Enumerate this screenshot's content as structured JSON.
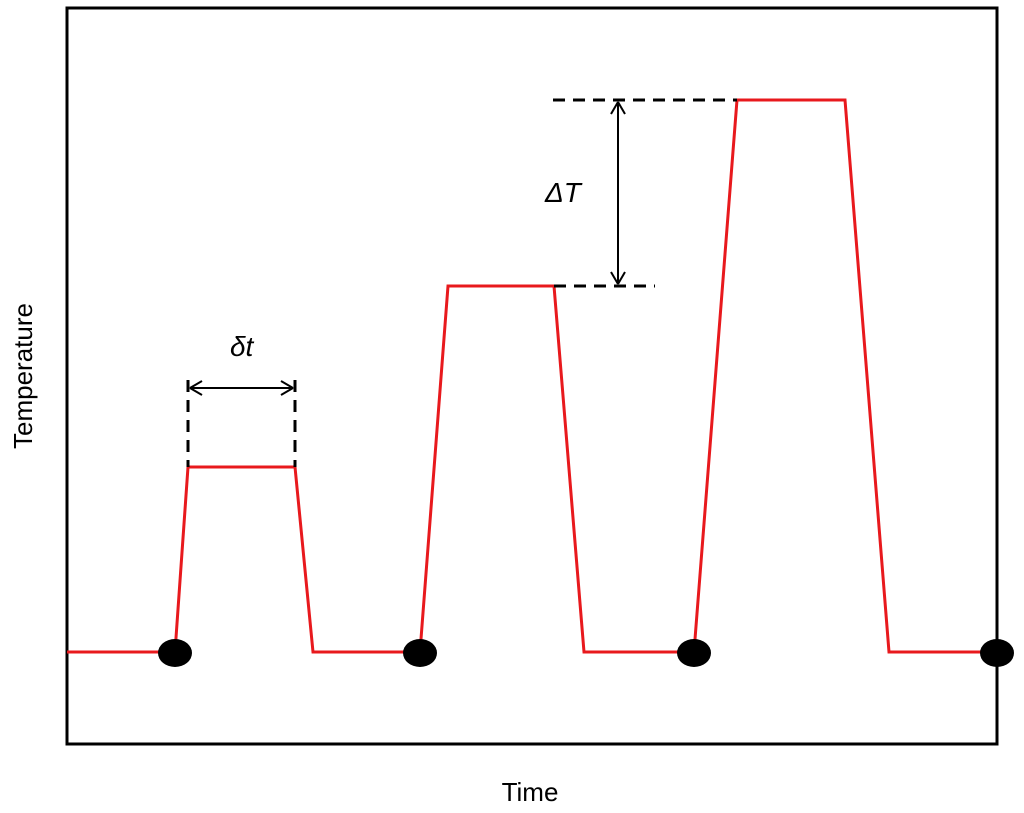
{
  "axes": {
    "x_label": "Time",
    "y_label": "Temperature"
  },
  "annotations": {
    "pulse_duration": "δt",
    "temperature_step": "ΔT"
  },
  "colors": {
    "profile_line": "#e8191d",
    "markers": "#000000",
    "frame": "#000000"
  },
  "profile": {
    "description_levels": [
      "base",
      "step 1",
      "step 2",
      "step 3"
    ],
    "pulse_count": 3,
    "marker_count": 4
  }
}
